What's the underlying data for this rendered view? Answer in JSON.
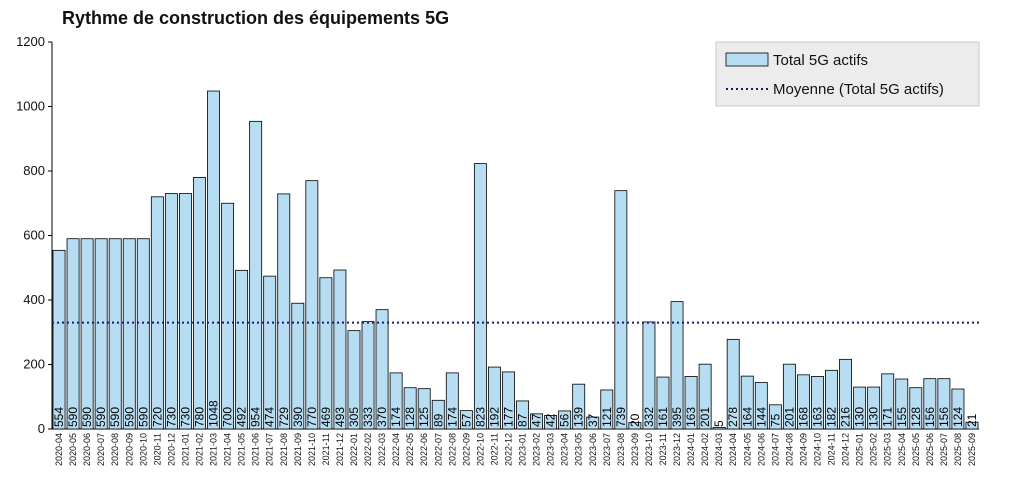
{
  "title": "Rythme de construction des équipements 5G",
  "colors": {
    "bar_fill": "#b7ddf3",
    "bar_stroke": "#000000",
    "average_line": "#1a1a6e",
    "legend_bg": "#ececec"
  },
  "chart_data": {
    "type": "bar",
    "title": "Rythme de construction des équipements 5G",
    "xlabel": "",
    "ylabel": "",
    "ylim": [
      0,
      1200
    ],
    "yticks": [
      0,
      200,
      400,
      600,
      800,
      1000,
      1200
    ],
    "grid": false,
    "legend_position": "top-right",
    "categories": [
      "2020-04",
      "2020-05",
      "2020-06",
      "2020-07",
      "2020-08",
      "2020-09",
      "2020-10",
      "2020-11",
      "2020-12",
      "2021-01",
      "2021-02",
      "2021-03",
      "2021-04",
      "2021-05",
      "2021-06",
      "2021-07",
      "2021-08",
      "2021-09",
      "2021-10",
      "2021-11",
      "2021-12",
      "2022-01",
      "2022-02",
      "2022-03",
      "2022-04",
      "2022-05",
      "2022-06",
      "2022-07",
      "2022-08",
      "2022-09",
      "2022-10",
      "2022-11",
      "2022-12",
      "2023-01",
      "2023-02",
      "2023-03",
      "2023-04",
      "2023-05",
      "2023-06",
      "2023-07",
      "2023-08",
      "2023-09",
      "2023-10",
      "2023-11",
      "2023-12",
      "2024-01",
      "2024-02",
      "2024-03",
      "2024-04",
      "2024-05",
      "2024-06",
      "2024-07",
      "2024-08",
      "2024-09",
      "2024-10",
      "2024-11",
      "2024-12",
      "2025-01",
      "2025-02",
      "2025-03",
      "2025-04",
      "2025-05",
      "2025-06",
      "2025-07",
      "2025-08",
      "2025-09"
    ],
    "series": [
      {
        "name": "Total 5G actifs",
        "values": [
          554,
          590,
          590,
          590,
          590,
          590,
          590,
          720,
          730,
          730,
          780,
          1048,
          700,
          492,
          954,
          474,
          729,
          390,
          770,
          469,
          493,
          305,
          333,
          370,
          174,
          128,
          125,
          89,
          174,
          57,
          823,
          192,
          177,
          87,
          47,
          42,
          56,
          139,
          37,
          121,
          739,
          20,
          332,
          161,
          395,
          163,
          201,
          5,
          278,
          164,
          144,
          75,
          201,
          168,
          163,
          182,
          216,
          130,
          130,
          171,
          155,
          128,
          156,
          156,
          124,
          21
        ]
      }
    ],
    "reference_lines": [
      {
        "name": "Moyenne (Total 5G actifs)",
        "value": 330,
        "style": "dotted"
      }
    ]
  }
}
